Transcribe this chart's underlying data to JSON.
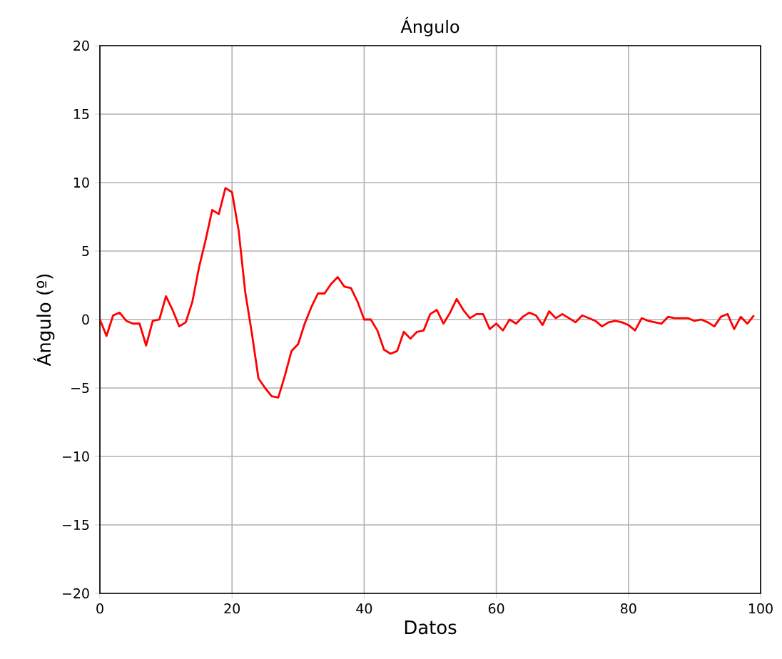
{
  "chart_data": {
    "type": "line",
    "title": "Ángulo",
    "xlabel": "Datos",
    "ylabel": "Ángulo (º)",
    "x": [
      0,
      1,
      2,
      3,
      4,
      5,
      6,
      7,
      8,
      9,
      10,
      11,
      12,
      13,
      14,
      15,
      16,
      17,
      18,
      19,
      20,
      21,
      22,
      23,
      24,
      25,
      26,
      27,
      28,
      29,
      30,
      31,
      32,
      33,
      34,
      35,
      36,
      37,
      38,
      39,
      40,
      41,
      42,
      43,
      44,
      45,
      46,
      47,
      48,
      49,
      50,
      51,
      52,
      53,
      54,
      55,
      56,
      57,
      58,
      59,
      60,
      61,
      62,
      63,
      64,
      65,
      66,
      67,
      68,
      69,
      70,
      71,
      72,
      73,
      74,
      75,
      76,
      77,
      78,
      79,
      80,
      81,
      82,
      83,
      84,
      85,
      86,
      87,
      88,
      89,
      90,
      91,
      92,
      93,
      94,
      95,
      96,
      97,
      98,
      99
    ],
    "series": [
      {
        "color": "#ff0000",
        "values": [
          0,
          -1.2,
          0.3,
          0.5,
          -0.1,
          -0.3,
          -0.3,
          -1.9,
          -0.1,
          0,
          1.7,
          0.7,
          -0.5,
          -0.2,
          1.3,
          3.8,
          5.8,
          8.0,
          7.7,
          9.6,
          9.3,
          6.5,
          2.0,
          -1.0,
          -4.3,
          -5.0,
          -5.6,
          -5.7,
          -4.1,
          -2.3,
          -1.8,
          -0.3,
          0.9,
          1.9,
          1.9,
          2.6,
          3.1,
          2.4,
          2.3,
          1.3,
          0,
          0,
          -0.8,
          -2.2,
          -2.5,
          -2.3,
          -0.9,
          -1.4,
          -0.9,
          -0.8,
          0.4,
          0.7,
          -0.3,
          0.5,
          1.5,
          0.7,
          0.1,
          0.4,
          0.4,
          -0.7,
          -0.3,
          -0.8,
          0.0,
          -0.3,
          0.2,
          0.5,
          0.3,
          -0.4,
          0.6,
          0.1,
          0.4,
          0.1,
          -0.2,
          0.3,
          0.1,
          -0.1,
          -0.5,
          -0.2,
          -0.1,
          -0.2,
          -0.4,
          -0.8,
          0.1,
          -0.1,
          -0.2,
          -0.3,
          0.2,
          0.1,
          0.1,
          0.1,
          -0.1,
          0,
          -0.2,
          -0.5,
          0.2,
          0.4,
          -0.7,
          0.2,
          -0.3,
          0.3
        ]
      }
    ],
    "xlim": [
      0,
      100
    ],
    "ylim": [
      -20,
      20
    ],
    "xticks": [
      0,
      20,
      40,
      60,
      80,
      100
    ],
    "yticks": [
      {
        "value": -20,
        "label": "−20"
      },
      {
        "value": -15,
        "label": "−15"
      },
      {
        "value": -10,
        "label": "−10"
      },
      {
        "value": -5,
        "label": "−5"
      },
      0,
      5,
      10,
      15,
      20
    ],
    "grid": true,
    "line_style": "solid",
    "marker": "none"
  }
}
